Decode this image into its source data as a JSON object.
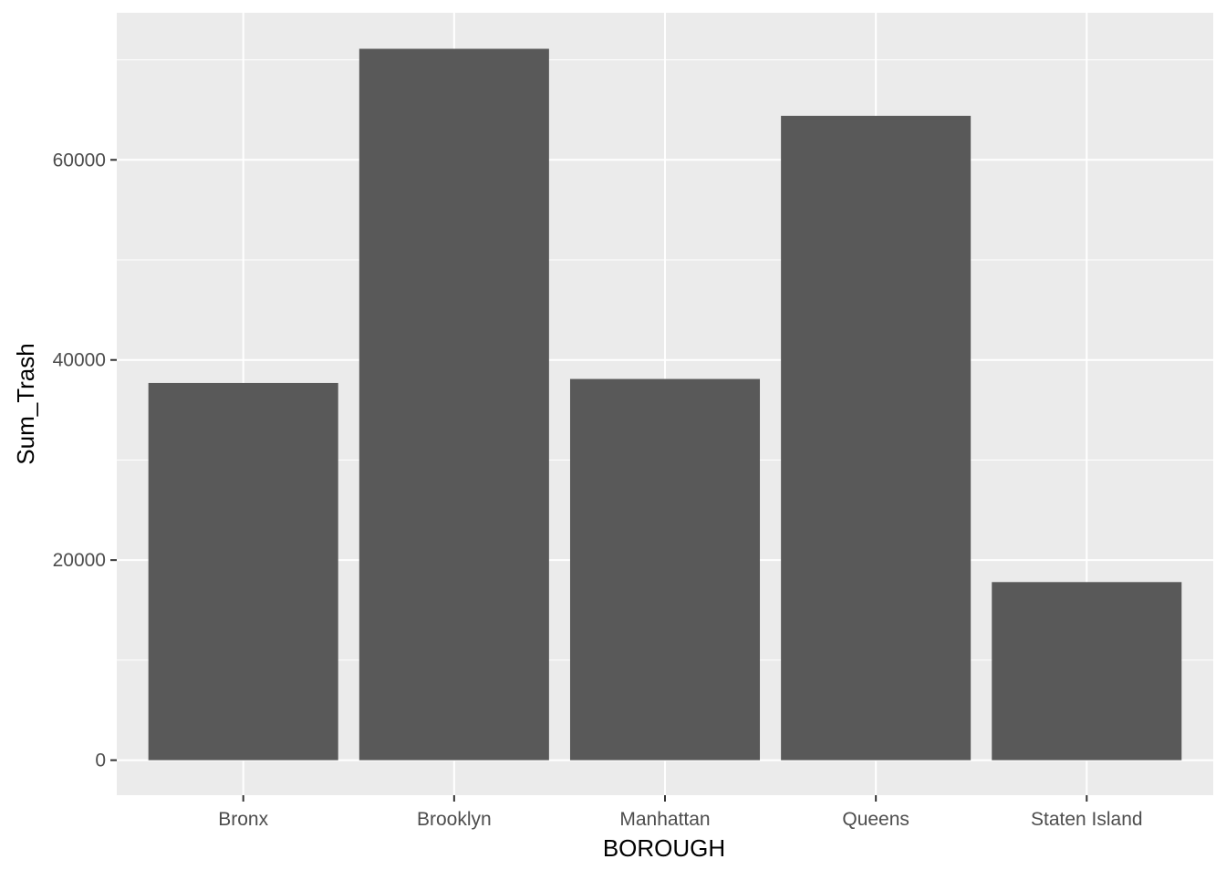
{
  "chart_data": {
    "type": "bar",
    "title": "",
    "xlabel": "BOROUGH",
    "ylabel": "Sum_Trash",
    "categories": [
      "Bronx",
      "Brooklyn",
      "Manhattan",
      "Queens",
      "Staten Island"
    ],
    "values": [
      37700,
      71100,
      38100,
      64400,
      17800
    ],
    "ylim": [
      -3500,
      74700
    ],
    "yticks": [
      0,
      20000,
      40000,
      60000
    ],
    "ytick_labels": [
      "0",
      "20000",
      "40000",
      "60000"
    ],
    "grid": true,
    "legend": "none"
  },
  "colors": {
    "panel_background": "#ebebeb",
    "grid_major": "#ffffff",
    "bar_fill": "#595959",
    "tick_mark": "#333333"
  }
}
